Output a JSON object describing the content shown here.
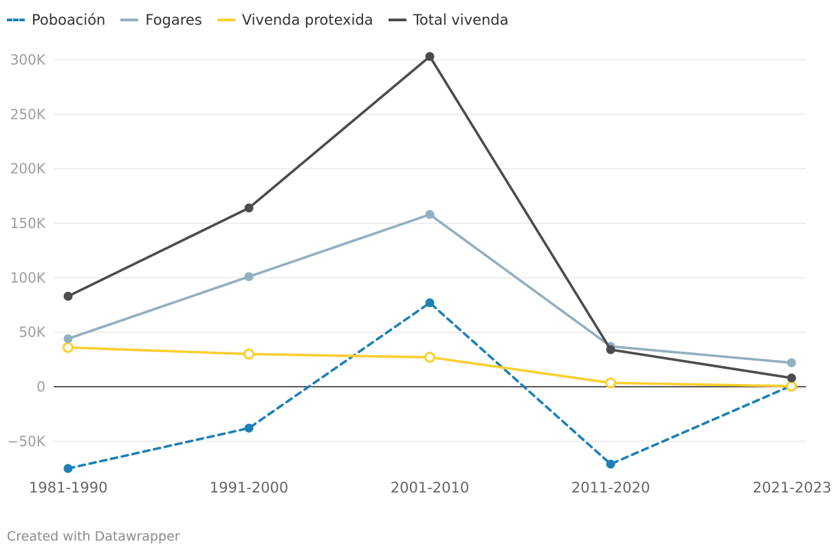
{
  "chart_data": {
    "type": "line",
    "title": "",
    "xlabel": "",
    "ylabel": "",
    "categories": [
      "1981-1990",
      "1991-2000",
      "2001-2010",
      "2011-2020",
      "2021-2023"
    ],
    "ylim": [
      -75000,
      300000
    ],
    "yticks": [
      -50000,
      0,
      50000,
      100000,
      150000,
      200000,
      250000,
      300000
    ],
    "ytick_labels": [
      "−50K",
      "0",
      "50K",
      "100K",
      "150K",
      "200K",
      "250K",
      "300K"
    ],
    "grid": true,
    "legend_position": "top-left",
    "series": [
      {
        "name": "Poboación",
        "color": "#1d81b6",
        "dash": true,
        "marker": "filled",
        "values": [
          -75000,
          -38000,
          77000,
          -71000,
          1000
        ]
      },
      {
        "name": "Fogares",
        "color": "#92b0bf",
        "dash": false,
        "marker": "filled",
        "values": [
          44000,
          101000,
          158000,
          37000,
          22000
        ]
      },
      {
        "name": "Vivenda protexida",
        "color": "#fccf30",
        "dash": false,
        "marker": "hollow",
        "values": [
          36000,
          30000,
          27000,
          3500,
          500
        ]
      },
      {
        "name": "Total vivenda",
        "color": "#4c4c4c",
        "dash": false,
        "marker": "filled",
        "values": [
          83000,
          164000,
          303000,
          34000,
          8000
        ]
      }
    ]
  },
  "footer": {
    "credit": "Created with Datawrapper"
  }
}
